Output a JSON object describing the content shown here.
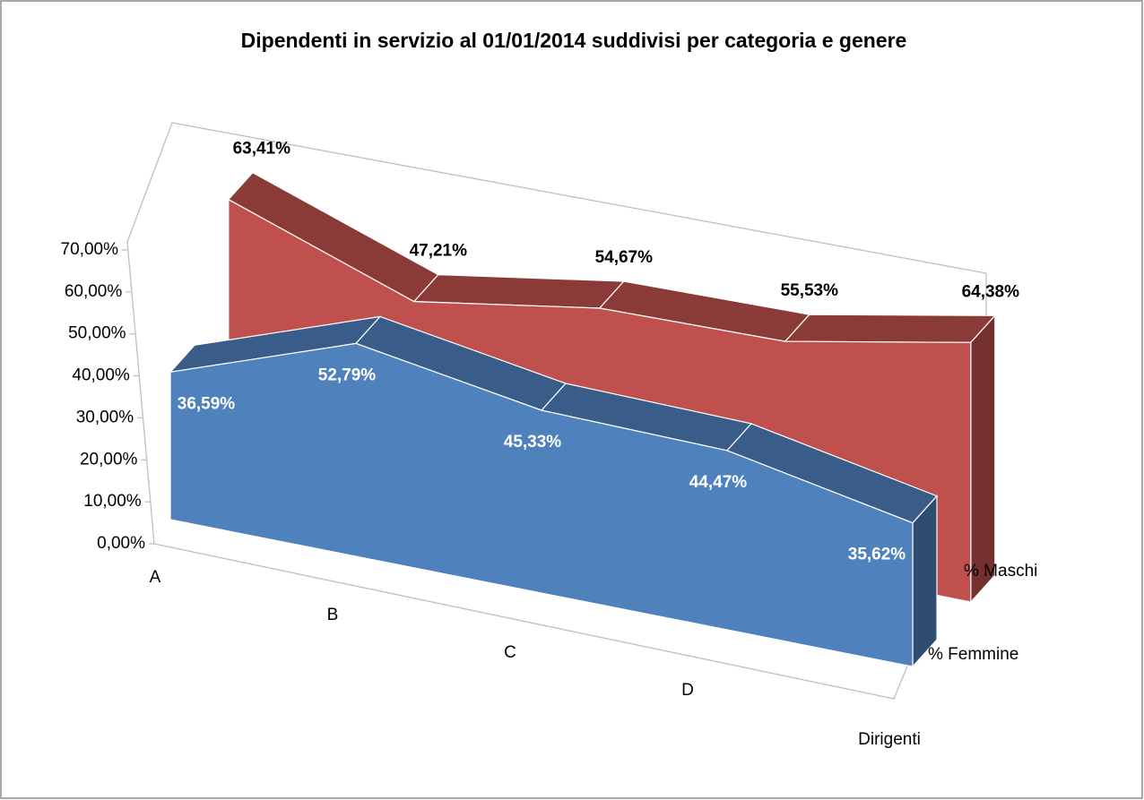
{
  "chart_data": {
    "type": "area3d",
    "title": "Dipendenti in servizio al 01/01/2014 suddivisi per categoria e genere",
    "categories": [
      "A",
      "B",
      "C",
      "D",
      "Dirigenti"
    ],
    "series": [
      {
        "name": "% Femmine",
        "color": "#4f81bd",
        "values": [
          36.59,
          52.79,
          45.33,
          44.47,
          35.62
        ],
        "value_labels": [
          "36,59%",
          "52,79%",
          "45,33%",
          "44,47%",
          "35,62%"
        ]
      },
      {
        "name": "% Maschi",
        "color": "#c0504d",
        "values": [
          63.41,
          47.21,
          54.67,
          55.53,
          64.38
        ],
        "value_labels": [
          "63,41%",
          "47,21%",
          "54,67%",
          "55,53%",
          "64,38%"
        ]
      }
    ],
    "ylim": [
      0,
      70
    ],
    "yticks": [
      {
        "value": 0,
        "label": "0,00%"
      },
      {
        "value": 10,
        "label": "10,00%"
      },
      {
        "value": 20,
        "label": "20,00%"
      },
      {
        "value": 30,
        "label": "30,00%"
      },
      {
        "value": 40,
        "label": "40,00%"
      },
      {
        "value": 50,
        "label": "50,00%"
      },
      {
        "value": 60,
        "label": "60,00%"
      },
      {
        "value": 70,
        "label": "70,00%"
      }
    ]
  }
}
